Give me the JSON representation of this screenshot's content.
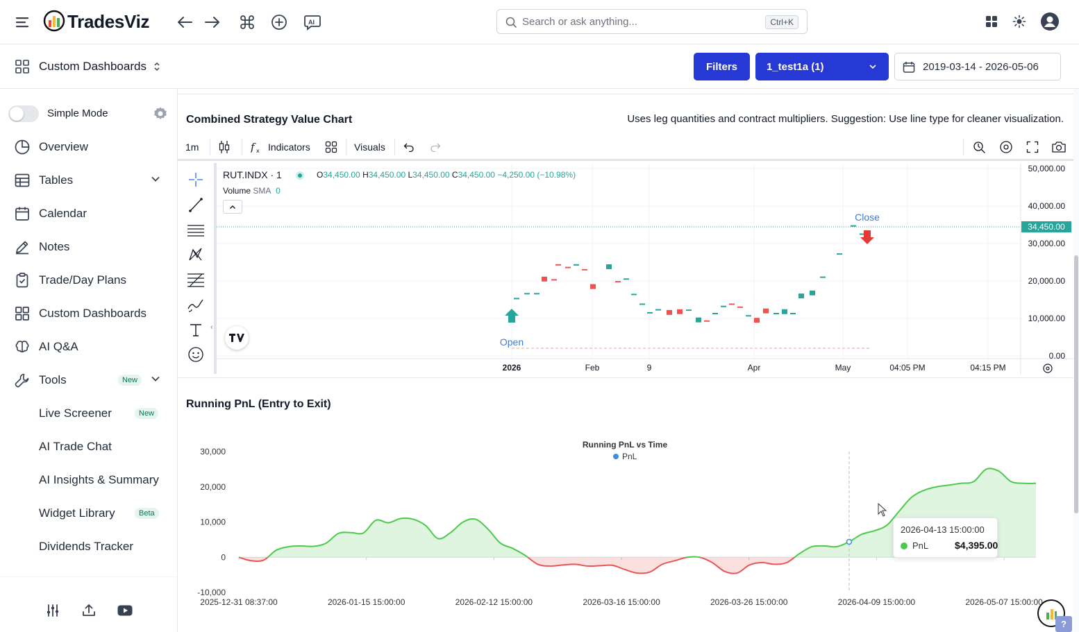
{
  "header": {
    "logo_text": "TradesViz",
    "search_placeholder": "Search or ask anything...",
    "search_shortcut": "Ctrl+K"
  },
  "subheader": {
    "title": "Custom Dashboards",
    "filters_label": "Filters",
    "account_selected": "1_test1a (1)",
    "date_range": "2019-03-14 - 2026-05-06"
  },
  "sidebar": {
    "simple_mode_label": "Simple Mode",
    "items": [
      {
        "label": "Overview"
      },
      {
        "label": "Tables"
      },
      {
        "label": "Calendar"
      },
      {
        "label": "Notes"
      },
      {
        "label": "Trade/Day Plans"
      },
      {
        "label": "Custom Dashboards"
      },
      {
        "label": "AI Q&A"
      },
      {
        "label": "Tools",
        "badge": "New"
      }
    ],
    "tools_children": [
      {
        "label": "Live Screener",
        "badge": "New"
      },
      {
        "label": "AI Trade Chat"
      },
      {
        "label": "AI Insights & Summary"
      },
      {
        "label": "Widget Library",
        "badge": "Beta"
      },
      {
        "label": "Dividends Tracker"
      }
    ]
  },
  "strategy_chart": {
    "title": "Combined Strategy Value Chart",
    "note": "Uses leg quantities and contract multipliers. Suggestion: Use line type for cleaner visualization.",
    "toolbar": {
      "interval": "1m",
      "indicators": "Indicators",
      "visuals": "Visuals"
    },
    "symbol": "RUT.INDX · 1",
    "ohlc": {
      "o_label": "O",
      "o": "34,450.00",
      "h_label": "H",
      "h": "34,450.00",
      "l_label": "L",
      "l": "34,450.00",
      "c_label": "C",
      "c": "34,450.00",
      "change": "−4,250.00 (−10.98%)"
    },
    "volume_label": "Volume",
    "sma_label": "SMA",
    "sma_value": "0",
    "price_badge": "34,450.00",
    "open_label": "Open",
    "close_label": "Close",
    "y_ticks": [
      "50,000.00",
      "40,000.00",
      "30,000.00",
      "20,000.00",
      "10,000.00",
      "0.00"
    ],
    "x_ticks": [
      "2026",
      "Feb",
      "9",
      "Apr",
      "May",
      "04:05 PM",
      "04:15 PM"
    ],
    "colors": {
      "up": "#26a69a",
      "down": "#ef5350"
    }
  },
  "pnl_chart": {
    "section_title": "Running PnL (Entry to Exit)",
    "tooltip": {
      "time": "2026-04-13 15:00:00",
      "series": "PnL",
      "value": "$4,395.00"
    }
  },
  "chart_data": {
    "type": "area",
    "title": "Running PnL vs Time",
    "legend": [
      "PnL"
    ],
    "legend_position": "top-center",
    "ylim": [
      -10000,
      30000
    ],
    "y_ticks": [
      "30,000",
      "20,000",
      "10,000",
      "0",
      "-10,000"
    ],
    "x_ticks": [
      "2025-12-31 08:37:00",
      "2026-01-15 15:00:00",
      "2026-02-12 15:00:00",
      "2026-03-16 15:00:00",
      "2026-03-26 15:00:00",
      "2026-04-09 15:00:00",
      "2026-05-07 15:00:00"
    ],
    "positive_color": "#4cc94c",
    "negative_color": "#e85555",
    "series": [
      {
        "name": "PnL",
        "values": [
          0,
          -1000,
          -800,
          2000,
          3000,
          3200,
          3100,
          4000,
          6800,
          7000,
          6900,
          10500,
          9800,
          11000,
          10800,
          9000,
          5300,
          7000,
          10000,
          10800,
          8000,
          4000,
          2500,
          500,
          -2000,
          -2500,
          -2200,
          -2000,
          -2500,
          -2400,
          -2300,
          -3500,
          -4500,
          -4200,
          -2000,
          -1000,
          0,
          0,
          -1500,
          -4000,
          -4500,
          -2200,
          -1500,
          -2000,
          -1500,
          1000,
          3000,
          3200,
          3000,
          4395,
          6500,
          7500,
          9000,
          13000,
          17000,
          19000,
          20000,
          20500,
          21000,
          21500,
          25000,
          24500,
          21500,
          21000,
          21000
        ]
      }
    ]
  }
}
